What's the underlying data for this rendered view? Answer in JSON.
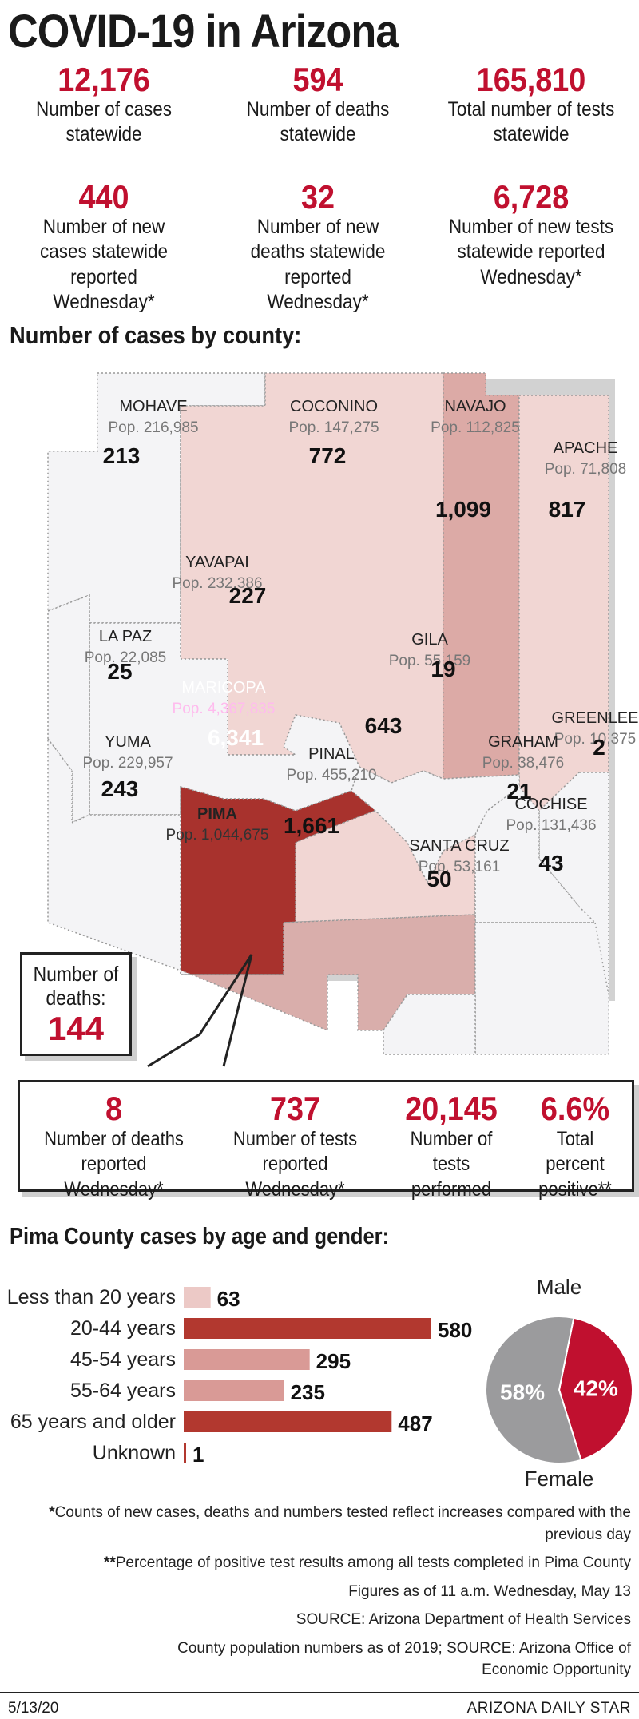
{
  "title": "COVID-19 in Arizona",
  "stats": [
    {
      "value": "12,176",
      "label": "Number of cases statewide"
    },
    {
      "value": "594",
      "label": "Number of deaths statewide"
    },
    {
      "value": "165,810",
      "label": "Total number of tests statewide"
    },
    {
      "value": "440",
      "label": "Number of new cases statewide reported Wednesday*"
    },
    {
      "value": "32",
      "label": "Number of new deaths statewide reported Wednesday*"
    },
    {
      "value": "6,728",
      "label": "Number of new tests statewide reported Wednesday*"
    }
  ],
  "map_title": "Number of cases by county:",
  "counties": [
    {
      "name": "MOHAVE",
      "pop": "Pop. 216,985",
      "cases": "213"
    },
    {
      "name": "COCONINO",
      "pop": "Pop. 147,275",
      "cases": "772"
    },
    {
      "name": "NAVAJO",
      "pop": "Pop. 112,825",
      "cases": "1,099"
    },
    {
      "name": "APACHE",
      "pop": "Pop. 71,808",
      "cases": "817"
    },
    {
      "name": "YAVAPAI",
      "pop": "Pop. 232,386",
      "cases": "227"
    },
    {
      "name": "LA PAZ",
      "pop": "Pop. 22,085",
      "cases": "25"
    },
    {
      "name": "GILA",
      "pop": "Pop. 55,159",
      "cases": "19"
    },
    {
      "name": "MARICOPA",
      "pop": "Pop. 4,367,835",
      "cases": "6,341"
    },
    {
      "name": "GREENLEE",
      "pop": "Pop. 10,375",
      "cases": "2"
    },
    {
      "name": "YUMA",
      "pop": "Pop. 229,957",
      "cases": "243"
    },
    {
      "name": "PINAL",
      "pop": "Pop. 455,210",
      "cases": "643"
    },
    {
      "name": "GRAHAM",
      "pop": "Pop. 38,476",
      "cases": "21"
    },
    {
      "name": "PIMA",
      "pop": "Pop. 1,044,675",
      "cases": "1,661"
    },
    {
      "name": "COCHISE",
      "pop": "Pop. 131,436",
      "cases": "43"
    },
    {
      "name": "SANTA CRUZ",
      "pop": "Pop. 53,161",
      "cases": "50"
    }
  ],
  "colors": {
    "accent": "#c0102f",
    "maricopa": "#a8322d",
    "pima": "#d9aeab",
    "navajo": "#dcaaa6",
    "light": "#f1d6d3",
    "pale": "#f4f4f6",
    "male": "#c0102f",
    "female": "#9b9b9d"
  },
  "pima_deaths": {
    "label": "Number of deaths:",
    "value": "144"
  },
  "pima_stats": [
    {
      "value": "8",
      "label": "Number of deaths reported Wednesday*"
    },
    {
      "value": "737",
      "label": "Number of tests reported Wednesday*"
    },
    {
      "value": "20,145",
      "label": "Number of tests performed"
    },
    {
      "value": "6.6%",
      "label": "Total percent positive**"
    }
  ],
  "chart_title": "Pima County cases by age and gender:",
  "chart_data": [
    {
      "type": "bar",
      "orientation": "horizontal",
      "categories": [
        "Less than 20 years",
        "20-44 years",
        "45-54 years",
        "55-64 years",
        "65 years and older",
        "Unknown"
      ],
      "values": [
        63,
        580,
        295,
        235,
        487,
        1
      ],
      "colors": [
        "#ecc9c6",
        "#b2382f",
        "#d99a96",
        "#d99a96",
        "#b2382f",
        "#b2382f"
      ]
    },
    {
      "type": "pie",
      "slices": [
        {
          "label": "Male",
          "value": 42,
          "display": "42%",
          "color": "#c0102f"
        },
        {
          "label": "Female",
          "value": 58,
          "display": "58%",
          "color": "#9b9b9d"
        }
      ]
    }
  ],
  "notes": [
    {
      "bold": "*",
      "text": "Counts of new cases, deaths and numbers tested reflect increases compared with the previous day"
    },
    {
      "bold": "**",
      "text": "Percentage of positive test results among all tests completed in Pima County"
    },
    {
      "bold": "",
      "text": "Figures as of 11 a.m. Wednesday, May 13"
    },
    {
      "bold": "",
      "text": "SOURCE: Arizona Department of Health Services"
    },
    {
      "bold": "",
      "text": "County population numbers as of 2019; SOURCE: Arizona Office of Economic Opportunity"
    }
  ],
  "footer": {
    "date": "5/13/20",
    "source": "ARIZONA DAILY STAR"
  }
}
